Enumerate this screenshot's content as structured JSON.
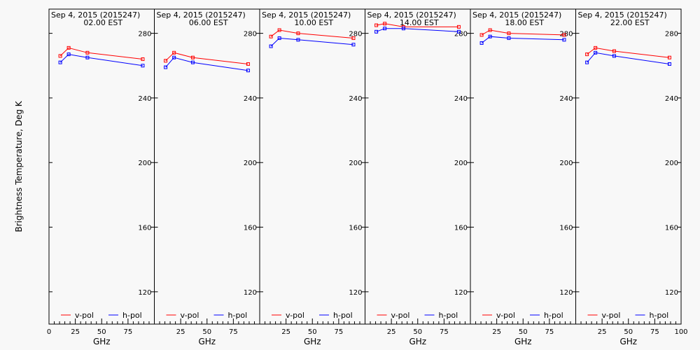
{
  "chart_data": [
    {
      "type": "line",
      "title": "Sep  4, 2015 (2015247)",
      "subtitle": "02.00 EST",
      "xlabel": "GHz",
      "ylabel": "Brightness Temperature, Deg K",
      "xlim": [
        0,
        100
      ],
      "ylim": [
        100,
        295
      ],
      "xticks": [
        0,
        25,
        50,
        75
      ],
      "yticks": [
        120,
        160,
        200,
        240,
        280
      ],
      "x": [
        10.7,
        18.7,
        36.5,
        89
      ],
      "series": [
        {
          "name": "v-pol",
          "color": "#ff0000",
          "values": [
            266,
            271,
            268,
            264
          ]
        },
        {
          "name": "h-pol",
          "color": "#0000ff",
          "values": [
            262,
            267,
            265,
            260
          ]
        }
      ],
      "legend": "bottom",
      "grid": false
    },
    {
      "type": "line",
      "title": "Sep  4, 2015 (2015247)",
      "subtitle": "06.00 EST",
      "xlabel": "GHz",
      "ylabel": "",
      "xlim": [
        0,
        100
      ],
      "ylim": [
        100,
        295
      ],
      "xticks": [
        25,
        50,
        75
      ],
      "yticks": [
        120,
        160,
        200,
        240,
        280
      ],
      "x": [
        10.7,
        18.7,
        36.5,
        89
      ],
      "series": [
        {
          "name": "v-pol",
          "color": "#ff0000",
          "values": [
            263,
            268,
            265,
            261
          ]
        },
        {
          "name": "h-pol",
          "color": "#0000ff",
          "values": [
            259,
            265,
            262,
            257
          ]
        }
      ],
      "legend": "bottom",
      "grid": false
    },
    {
      "type": "line",
      "title": "Sep  4, 2015 (2015247)",
      "subtitle": "10.00 EST",
      "xlabel": "GHz",
      "ylabel": "",
      "xlim": [
        0,
        100
      ],
      "ylim": [
        100,
        295
      ],
      "xticks": [
        25,
        50,
        75
      ],
      "yticks": [
        120,
        160,
        200,
        240,
        280
      ],
      "x": [
        10.7,
        18.7,
        36.5,
        89
      ],
      "series": [
        {
          "name": "v-pol",
          "color": "#ff0000",
          "values": [
            278,
            282,
            280,
            277
          ]
        },
        {
          "name": "h-pol",
          "color": "#0000ff",
          "values": [
            272,
            277,
            276,
            273
          ]
        }
      ],
      "legend": "bottom",
      "grid": false
    },
    {
      "type": "line",
      "title": "Sep  4, 2015 (2015247)",
      "subtitle": "14.00 EST",
      "xlabel": "GHz",
      "ylabel": "",
      "xlim": [
        0,
        100
      ],
      "ylim": [
        100,
        295
      ],
      "xticks": [
        25,
        50,
        75
      ],
      "yticks": [
        120,
        160,
        200,
        240,
        280
      ],
      "x": [
        10.7,
        18.7,
        36.5,
        89
      ],
      "series": [
        {
          "name": "v-pol",
          "color": "#ff0000",
          "values": [
            285,
            286,
            284,
            284
          ]
        },
        {
          "name": "h-pol",
          "color": "#0000ff",
          "values": [
            281,
            283,
            283,
            281
          ]
        }
      ],
      "legend": "bottom",
      "grid": false
    },
    {
      "type": "line",
      "title": "Sep  4, 2015 (2015247)",
      "subtitle": "18.00 EST",
      "xlabel": "GHz",
      "ylabel": "",
      "xlim": [
        0,
        100
      ],
      "ylim": [
        100,
        295
      ],
      "xticks": [
        25,
        50,
        75
      ],
      "yticks": [
        120,
        160,
        200,
        240,
        280
      ],
      "x": [
        10.7,
        18.7,
        36.5,
        89
      ],
      "series": [
        {
          "name": "v-pol",
          "color": "#ff0000",
          "values": [
            279,
            282,
            280,
            279
          ]
        },
        {
          "name": "h-pol",
          "color": "#0000ff",
          "values": [
            274,
            278,
            277,
            276
          ]
        }
      ],
      "legend": "bottom",
      "grid": false
    },
    {
      "type": "line",
      "title": "Sep  4, 2015 (2015247)",
      "subtitle": "22.00 EST",
      "xlabel": "GHz",
      "ylabel": "",
      "xlim": [
        0,
        100
      ],
      "ylim": [
        100,
        295
      ],
      "xticks": [
        25,
        50,
        75,
        100
      ],
      "yticks": [
        120,
        160,
        200,
        240,
        280
      ],
      "x": [
        10.7,
        18.7,
        36.5,
        89
      ],
      "series": [
        {
          "name": "v-pol",
          "color": "#ff0000",
          "values": [
            267,
            271,
            269,
            265
          ]
        },
        {
          "name": "h-pol",
          "color": "#0000ff",
          "values": [
            262,
            268,
            266,
            261
          ]
        }
      ],
      "legend": "bottom",
      "grid": false
    }
  ]
}
